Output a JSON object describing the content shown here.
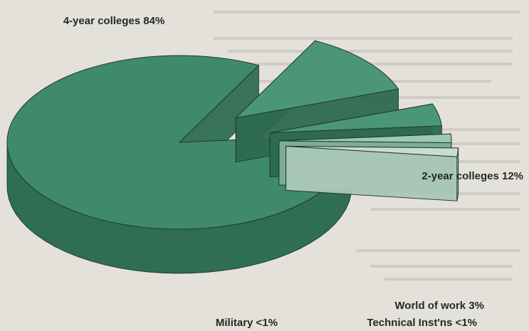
{
  "chart_data": {
    "type": "pie",
    "style": "3d-exploded",
    "title": "",
    "colors": {
      "main_top": "#3f8a6c",
      "main_side": "#2f6e54",
      "small_top": "#4b9678",
      "small_side": "#2e6a50",
      "light_top": "#9fc8b4",
      "light_side": "#7fae97",
      "pale_top": "#c8ddd2",
      "pale_side": "#a9c7b8",
      "outline": "#1f3a2c"
    },
    "slices": [
      {
        "label": "4-year colleges 84%",
        "category": "4-year colleges",
        "value": 84,
        "value_text": "84%"
      },
      {
        "label": "2-year colleges 12%",
        "category": "2-year colleges",
        "value": 12,
        "value_text": "12%"
      },
      {
        "label": "World of work 3%",
        "category": "World of work",
        "value": 3,
        "value_text": "3%"
      },
      {
        "label": "Technical Inst'ns <1%",
        "category": "Technical Inst'ns",
        "value": 0.5,
        "value_text": "<1%"
      },
      {
        "label": "Military <1%",
        "category": "Military",
        "value": 0.5,
        "value_text": "<1%"
      }
    ]
  }
}
